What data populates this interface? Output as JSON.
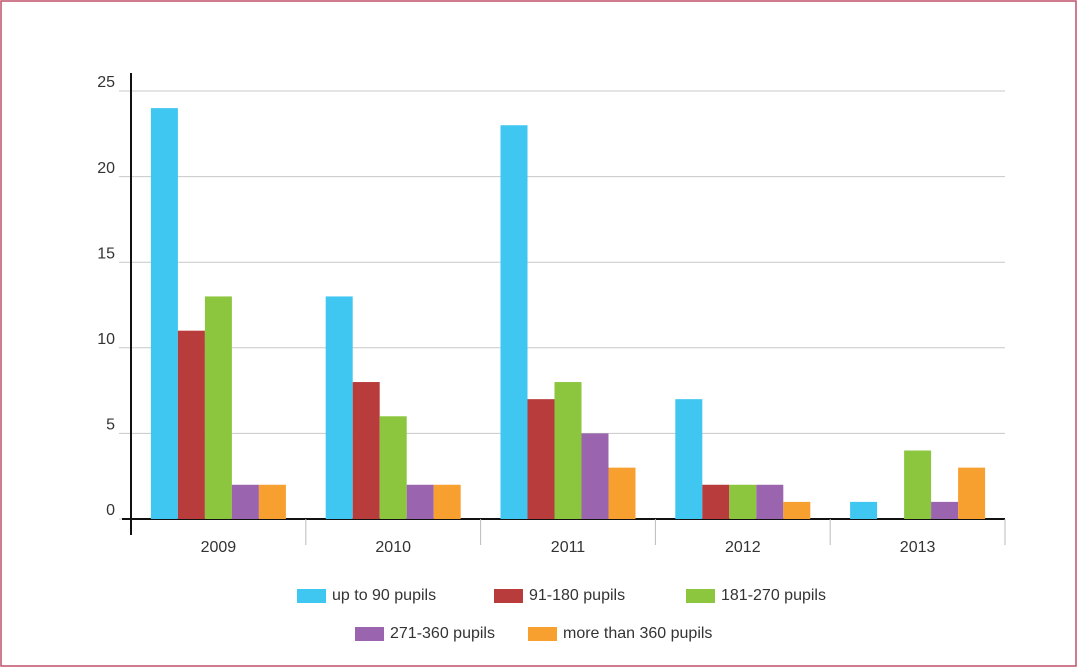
{
  "chart_data": {
    "type": "bar",
    "categories": [
      "2009",
      "2010",
      "2011",
      "2012",
      "2013"
    ],
    "series": [
      {
        "name": "up to 90 pupils",
        "color": "#3fc6f1",
        "values": [
          24,
          13,
          23,
          7,
          1
        ]
      },
      {
        "name": "91-180 pupils",
        "color": "#b83c3c",
        "values": [
          11,
          8,
          7,
          2,
          0
        ]
      },
      {
        "name": "181-270 pupils",
        "color": "#8cc63f",
        "values": [
          13,
          6,
          8,
          2,
          4
        ]
      },
      {
        "name": "271-360 pupils",
        "color": "#9b64ae",
        "values": [
          2,
          2,
          5,
          2,
          1
        ]
      },
      {
        "name": "more than 360 pupils",
        "color": "#f7a030",
        "values": [
          2,
          2,
          3,
          1,
          3
        ]
      }
    ],
    "ylim": [
      0,
      25
    ],
    "yticks": [
      0,
      5,
      10,
      15,
      20,
      25
    ],
    "grid": true
  }
}
